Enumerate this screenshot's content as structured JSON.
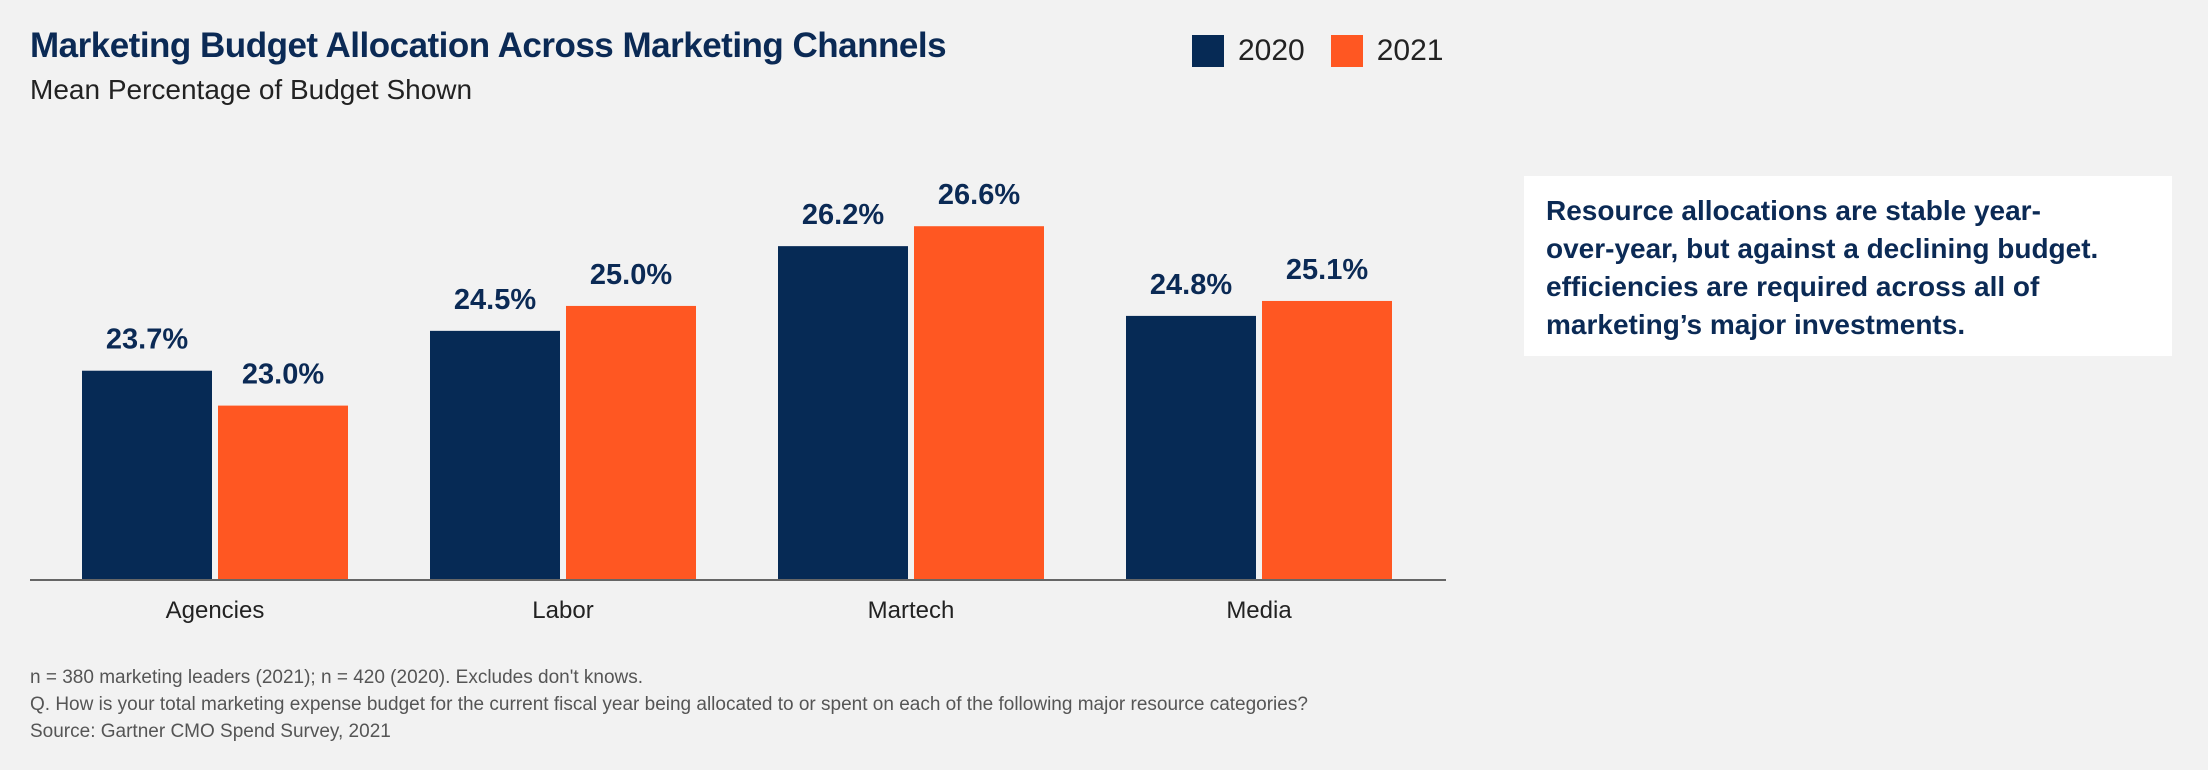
{
  "title": "Marketing Budget Allocation Across Marketing Channels",
  "subtitle": "Mean Percentage of Budget Shown",
  "legend": [
    {
      "label": "2020",
      "color": "#062a55"
    },
    {
      "label": "2021",
      "color": "#ff5722"
    }
  ],
  "callout": {
    "lines": [
      "Resource allocations are stable year-",
      "over-year, but against a declining budget.",
      "efficiencies are required across all of",
      "marketing’s major investments."
    ]
  },
  "notes": [
    "n = 380 marketing leaders (2021); n = 420 (2020). Excludes don't knows.",
    "Q. How is your total marketing expense budget for the current fiscal year being allocated to or spent on each of the following major resource categories?",
    "Source: Gartner CMO Spend Survey, 2021"
  ],
  "chart_data": {
    "type": "bar",
    "title": "Marketing Budget Allocation Across Marketing Channels",
    "subtitle": "Mean Percentage of Budget Shown",
    "categories": [
      "Agencies",
      "Labor",
      "Martech",
      "Media"
    ],
    "series": [
      {
        "name": "2020",
        "color": "#062a55",
        "values": [
          23.7,
          24.5,
          26.2,
          24.8
        ],
        "labels": [
          "23.7%",
          "24.5%",
          "26.2%",
          "24.8%"
        ]
      },
      {
        "name": "2021",
        "color": "#ff5722",
        "values": [
          23.0,
          25.0,
          26.6,
          25.1
        ],
        "labels": [
          "23.0%",
          "25.0%",
          "26.6%",
          "25.1%"
        ]
      }
    ],
    "ylim": [
      19.5,
      28.0
    ],
    "xlabel": "",
    "ylabel": "",
    "grid": false,
    "legend_position": "top-right"
  }
}
